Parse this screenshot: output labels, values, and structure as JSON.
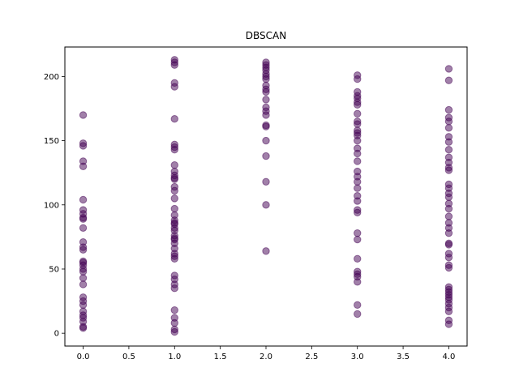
{
  "chart_data": {
    "type": "scatter",
    "title": "DBSCAN",
    "xlabel": "",
    "ylabel": "",
    "xlim": [
      -0.2,
      4.2
    ],
    "ylim": [
      -10,
      223
    ],
    "x_ticks": [
      0.0,
      0.5,
      1.0,
      1.5,
      2.0,
      2.5,
      3.0,
      3.5,
      4.0
    ],
    "x_tick_labels": [
      "0.0",
      "0.5",
      "1.0",
      "1.5",
      "2.0",
      "2.5",
      "3.0",
      "3.5",
      "4.0"
    ],
    "y_ticks": [
      0,
      50,
      100,
      150,
      200
    ],
    "y_tick_labels": [
      "0",
      "50",
      "100",
      "150",
      "200"
    ],
    "grid": false,
    "legend": false,
    "colors": {
      "point": "#440154",
      "point_opacity": 0.5
    },
    "series": [
      {
        "points": [
          [
            0,
            170
          ],
          [
            0,
            148
          ],
          [
            0,
            146
          ],
          [
            0,
            134
          ],
          [
            0,
            130
          ],
          [
            0,
            104
          ],
          [
            0,
            96
          ],
          [
            0,
            93
          ],
          [
            0,
            90
          ],
          [
            0,
            89
          ],
          [
            0,
            82
          ],
          [
            0,
            71
          ],
          [
            0,
            67
          ],
          [
            0,
            65
          ],
          [
            0,
            56
          ],
          [
            0,
            55
          ],
          [
            0,
            53
          ],
          [
            0,
            50
          ],
          [
            0,
            48
          ],
          [
            0,
            43
          ],
          [
            0,
            38
          ],
          [
            0,
            28
          ],
          [
            0,
            25
          ],
          [
            0,
            22
          ],
          [
            0,
            17
          ],
          [
            0,
            14
          ],
          [
            0,
            12
          ],
          [
            0,
            9
          ],
          [
            0,
            5
          ],
          [
            0,
            4
          ],
          [
            1,
            213
          ],
          [
            1,
            211
          ],
          [
            1,
            209
          ],
          [
            1,
            195
          ],
          [
            1,
            192
          ],
          [
            1,
            167
          ],
          [
            1,
            147
          ],
          [
            1,
            145
          ],
          [
            1,
            143
          ],
          [
            1,
            131
          ],
          [
            1,
            126
          ],
          [
            1,
            123
          ],
          [
            1,
            121
          ],
          [
            1,
            120
          ],
          [
            1,
            114
          ],
          [
            1,
            111
          ],
          [
            1,
            105
          ],
          [
            1,
            97
          ],
          [
            1,
            92
          ],
          [
            1,
            88
          ],
          [
            1,
            86
          ],
          [
            1,
            85
          ],
          [
            1,
            82
          ],
          [
            1,
            80
          ],
          [
            1,
            76
          ],
          [
            1,
            74
          ],
          [
            1,
            73
          ],
          [
            1,
            70
          ],
          [
            1,
            66
          ],
          [
            1,
            62
          ],
          [
            1,
            60
          ],
          [
            1,
            58
          ],
          [
            1,
            45
          ],
          [
            1,
            42
          ],
          [
            1,
            38
          ],
          [
            1,
            35
          ],
          [
            1,
            18
          ],
          [
            1,
            12
          ],
          [
            1,
            8
          ],
          [
            1,
            3
          ],
          [
            1,
            1
          ],
          [
            2,
            211
          ],
          [
            2,
            209
          ],
          [
            2,
            207
          ],
          [
            2,
            205
          ],
          [
            2,
            202
          ],
          [
            2,
            200
          ],
          [
            2,
            198
          ],
          [
            2,
            193
          ],
          [
            2,
            190
          ],
          [
            2,
            188
          ],
          [
            2,
            182
          ],
          [
            2,
            176
          ],
          [
            2,
            173
          ],
          [
            2,
            170
          ],
          [
            2,
            162
          ],
          [
            2,
            161
          ],
          [
            2,
            150
          ],
          [
            2,
            138
          ],
          [
            2,
            118
          ],
          [
            2,
            100
          ],
          [
            2,
            64
          ],
          [
            3,
            201
          ],
          [
            3,
            198
          ],
          [
            3,
            188
          ],
          [
            3,
            185
          ],
          [
            3,
            183
          ],
          [
            3,
            180
          ],
          [
            3,
            178
          ],
          [
            3,
            171
          ],
          [
            3,
            165
          ],
          [
            3,
            163
          ],
          [
            3,
            158
          ],
          [
            3,
            156
          ],
          [
            3,
            154
          ],
          [
            3,
            150
          ],
          [
            3,
            144
          ],
          [
            3,
            140
          ],
          [
            3,
            134
          ],
          [
            3,
            126
          ],
          [
            3,
            122
          ],
          [
            3,
            118
          ],
          [
            3,
            113
          ],
          [
            3,
            107
          ],
          [
            3,
            103
          ],
          [
            3,
            96
          ],
          [
            3,
            94
          ],
          [
            3,
            78
          ],
          [
            3,
            73
          ],
          [
            3,
            58
          ],
          [
            3,
            48
          ],
          [
            3,
            46
          ],
          [
            3,
            44
          ],
          [
            3,
            40
          ],
          [
            3,
            22
          ],
          [
            3,
            15
          ],
          [
            4,
            206
          ],
          [
            4,
            197
          ],
          [
            4,
            174
          ],
          [
            4,
            168
          ],
          [
            4,
            165
          ],
          [
            4,
            160
          ],
          [
            4,
            153
          ],
          [
            4,
            149
          ],
          [
            4,
            143
          ],
          [
            4,
            137
          ],
          [
            4,
            133
          ],
          [
            4,
            129
          ],
          [
            4,
            127
          ],
          [
            4,
            116
          ],
          [
            4,
            113
          ],
          [
            4,
            109
          ],
          [
            4,
            106
          ],
          [
            4,
            101
          ],
          [
            4,
            97
          ],
          [
            4,
            91
          ],
          [
            4,
            86
          ],
          [
            4,
            82
          ],
          [
            4,
            78
          ],
          [
            4,
            70
          ],
          [
            4,
            69
          ],
          [
            4,
            62
          ],
          [
            4,
            59
          ],
          [
            4,
            53
          ],
          [
            4,
            51
          ],
          [
            4,
            36
          ],
          [
            4,
            34
          ],
          [
            4,
            32
          ],
          [
            4,
            30
          ],
          [
            4,
            28
          ],
          [
            4,
            26
          ],
          [
            4,
            23
          ],
          [
            4,
            20
          ],
          [
            4,
            17
          ],
          [
            4,
            10
          ],
          [
            4,
            7
          ]
        ]
      }
    ]
  }
}
